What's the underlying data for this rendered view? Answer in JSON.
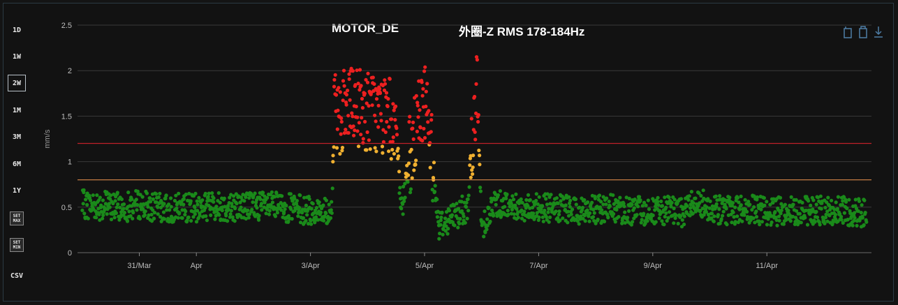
{
  "range_buttons": [
    {
      "label": "1D",
      "active": false
    },
    {
      "label": "1W",
      "active": false
    },
    {
      "label": "2W",
      "active": true
    },
    {
      "label": "1M",
      "active": false
    },
    {
      "label": "3M",
      "active": false
    },
    {
      "label": "6M",
      "active": false
    },
    {
      "label": "1Y",
      "active": false
    }
  ],
  "set_max": {
    "line1": "SET",
    "line2": "MAX"
  },
  "set_min": {
    "line1": "SET",
    "line2": "MIN"
  },
  "csv_label": "CSV",
  "toolbar_icons": [
    "copy-icon",
    "paste-icon",
    "download-icon"
  ],
  "colors": {
    "normal": "#1a8a1a",
    "warning": "#f0b030",
    "alarm": "#ee2020",
    "warning_line": "#d98a4a",
    "alarm_line": "#c0202a"
  },
  "chart_data": {
    "type": "scatter",
    "title_left": "MOTOR_DE",
    "title_right": "外圈-Z RMS 178-184Hz",
    "ylabel": "mm/s",
    "ylim": [
      0,
      2.5
    ],
    "yticks": [
      "0",
      "0.5",
      "1",
      "1.5",
      "2",
      "2.5"
    ],
    "xlim": [
      "2025-03-29T22:00",
      "2025-04-12T20:00"
    ],
    "xticks": [
      {
        "label": "31/Mar",
        "date": "2025-03-31"
      },
      {
        "label": "Apr",
        "date": "2025-04-01"
      },
      {
        "label": "3/Apr",
        "date": "2025-04-03"
      },
      {
        "label": "5/Apr",
        "date": "2025-04-05"
      },
      {
        "label": "7/Apr",
        "date": "2025-04-07"
      },
      {
        "label": "9/Apr",
        "date": "2025-04-09"
      },
      {
        "label": "11/Apr",
        "date": "2025-04-11"
      }
    ],
    "thresholds": [
      {
        "name": "warning",
        "value": 0.8
      },
      {
        "name": "alarm",
        "value": 1.2
      }
    ],
    "series": [
      {
        "values": [
          [
            "2025-03-30T00:00",
            0.53
          ],
          [
            "2025-03-30T06:00",
            0.52
          ],
          [
            "2025-03-30T12:00",
            0.51
          ],
          [
            "2025-03-30T18:00",
            0.5
          ],
          [
            "2025-03-31T00:00",
            0.53
          ],
          [
            "2025-03-31T06:00",
            0.5
          ],
          [
            "2025-03-31T12:00",
            0.48
          ],
          [
            "2025-03-31T18:00",
            0.5
          ],
          [
            "2025-04-01T00:00",
            0.49
          ],
          [
            "2025-04-01T06:00",
            0.52
          ],
          [
            "2025-04-01T12:00",
            0.5
          ],
          [
            "2025-04-01T18:00",
            0.51
          ],
          [
            "2025-04-02T00:00",
            0.52
          ],
          [
            "2025-04-02T06:00",
            0.51
          ],
          [
            "2025-04-02T12:00",
            0.5
          ],
          [
            "2025-04-02T18:00",
            0.48
          ],
          [
            "2025-04-03T00:00",
            0.46
          ],
          [
            "2025-04-03T06:00",
            0.45
          ],
          [
            "2025-04-03T09:00",
            0.45
          ],
          [
            "2025-04-03T10:00",
            1.5
          ],
          [
            "2025-04-03T14:00",
            1.55
          ],
          [
            "2025-04-03T20:00",
            1.6
          ],
          [
            "2025-04-04T02:00",
            1.55
          ],
          [
            "2025-04-04T08:00",
            1.5
          ],
          [
            "2025-04-04T12:00",
            1.45
          ],
          [
            "2025-04-04T14:00",
            0.4
          ],
          [
            "2025-04-04T18:00",
            1.1
          ],
          [
            "2025-04-04T22:00",
            1.5
          ],
          [
            "2025-04-05T00:00",
            1.7
          ],
          [
            "2025-04-05T02:00",
            1.4
          ],
          [
            "2025-04-05T06:00",
            0.3
          ],
          [
            "2025-04-05T12:00",
            0.4
          ],
          [
            "2025-04-05T18:00",
            0.5
          ],
          [
            "2025-04-05T22:00",
            1.8
          ],
          [
            "2025-04-06T00:00",
            0.3
          ],
          [
            "2025-04-06T06:00",
            0.55
          ],
          [
            "2025-04-06T12:00",
            0.52
          ],
          [
            "2025-04-06T18:00",
            0.5
          ],
          [
            "2025-04-07T00:00",
            0.5
          ],
          [
            "2025-04-07T06:00",
            0.48
          ],
          [
            "2025-04-07T12:00",
            0.47
          ],
          [
            "2025-04-07T18:00",
            0.46
          ],
          [
            "2025-04-08T00:00",
            0.47
          ],
          [
            "2025-04-08T06:00",
            0.48
          ],
          [
            "2025-04-08T12:00",
            0.47
          ],
          [
            "2025-04-08T18:00",
            0.46
          ],
          [
            "2025-04-09T00:00",
            0.45
          ],
          [
            "2025-04-09T06:00",
            0.46
          ],
          [
            "2025-04-09T12:00",
            0.44
          ],
          [
            "2025-04-09T18:00",
            0.58
          ],
          [
            "2025-04-10T00:00",
            0.5
          ],
          [
            "2025-04-10T06:00",
            0.46
          ],
          [
            "2025-04-10T12:00",
            0.48
          ],
          [
            "2025-04-10T18:00",
            0.47
          ],
          [
            "2025-04-11T00:00",
            0.46
          ],
          [
            "2025-04-11T06:00",
            0.45
          ],
          [
            "2025-04-11T12:00",
            0.47
          ],
          [
            "2025-04-11T18:00",
            0.46
          ],
          [
            "2025-04-12T00:00",
            0.47
          ],
          [
            "2025-04-12T06:00",
            0.46
          ],
          [
            "2025-04-12T12:00",
            0.45
          ],
          [
            "2025-04-12T18:00",
            0.44
          ]
        ]
      }
    ]
  }
}
